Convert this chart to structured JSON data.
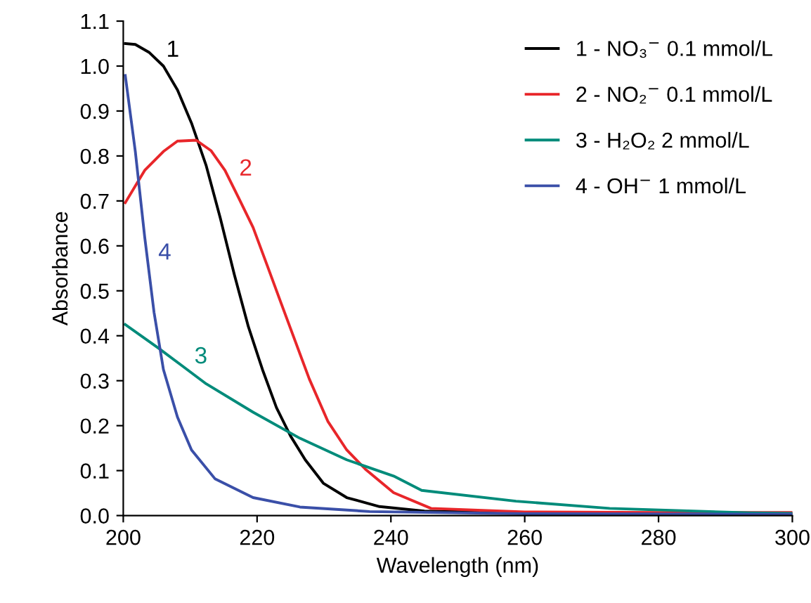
{
  "chart_data": {
    "type": "line",
    "xlabel": "Wavelength (nm)",
    "ylabel": "Absorbance",
    "xlim": [
      200,
      300
    ],
    "xticks": [
      200,
      220,
      240,
      260,
      280,
      300
    ],
    "ylim": [
      0,
      1.1
    ],
    "yticks": [
      {
        "value": 0,
        "label": "0.0"
      },
      0.1,
      0.2,
      0.3,
      0.4,
      0.5,
      0.6,
      0.7,
      0.8,
      0.9,
      {
        "value": 1,
        "label": "1.0"
      },
      1.1
    ],
    "grid": false,
    "legend": "top right",
    "marker": "none",
    "line_style": "solid",
    "series": [
      {
        "name": "1 - NO₃$^{−}$ 0.1 mmol/L",
        "color": "#000000",
        "x": [
          200.3,
          201.8,
          203.9,
          206,
          208.1,
          210.2,
          212.4,
          214.5,
          216.6,
          218.7,
          220.8,
          222.9,
          225,
          227.2,
          229.9,
          233.4,
          238.3,
          245,
          260,
          280,
          300
        ],
        "values": [
          1.05,
          1.048,
          1.03,
          1.0,
          0.947,
          0.873,
          0.778,
          0.662,
          0.536,
          0.42,
          0.325,
          0.24,
          0.177,
          0.124,
          0.072,
          0.04,
          0.02,
          0.01,
          0.006,
          0.005,
          0.005
        ]
      },
      {
        "name": "2 - NO₂$^{−}$ 0.1 mmol/L",
        "color": "#e8262a",
        "x": [
          200.3,
          203.2,
          206,
          208.1,
          210.9,
          213.1,
          215.2,
          217.3,
          219.4,
          221.5,
          223.6,
          225.7,
          227.8,
          230.6,
          233.4,
          236.2,
          240.4,
          246,
          260,
          280,
          300
        ],
        "values": [
          0.696,
          0.768,
          0.81,
          0.833,
          0.835,
          0.812,
          0.768,
          0.705,
          0.641,
          0.557,
          0.472,
          0.388,
          0.304,
          0.209,
          0.146,
          0.103,
          0.051,
          0.016,
          0.008,
          0.007,
          0.007
        ]
      },
      {
        "name": "3 - H₂O₂ 2 mmol/L",
        "color": "#008b7a",
        "x": [
          200.3,
          205.3,
          212.4,
          219.4,
          226.4,
          233.4,
          240.4,
          244.6,
          258.7,
          272.7,
          293.7,
          300
        ],
        "values": [
          0.425,
          0.372,
          0.293,
          0.23,
          0.172,
          0.124,
          0.088,
          0.056,
          0.032,
          0.016,
          0.006,
          0.005
        ]
      },
      {
        "name": "4 - OH$^{−}$ 1 mmol/L",
        "color": "#3a4fa8",
        "x": [
          200.3,
          201.8,
          203.2,
          204.6,
          206,
          208.1,
          210.2,
          213.7,
          219.4,
          226.4,
          236.8,
          260,
          300
        ],
        "values": [
          0.979,
          0.81,
          0.62,
          0.452,
          0.325,
          0.219,
          0.146,
          0.082,
          0.04,
          0.019,
          0.009,
          0.004,
          0.003
        ]
      }
    ],
    "annotations": [
      "1",
      "2",
      "3",
      "4"
    ]
  }
}
